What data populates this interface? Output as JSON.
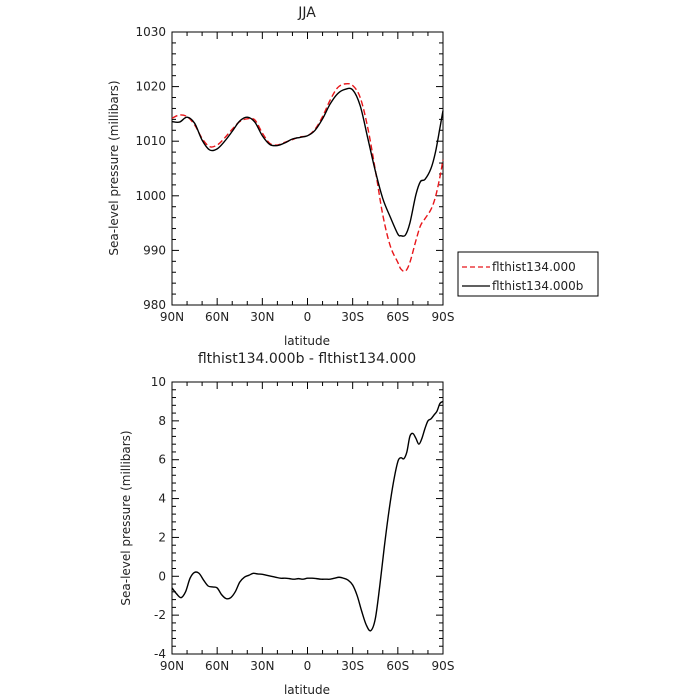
{
  "chart_data": [
    {
      "type": "line",
      "title": "JJA",
      "xlabel": "latitude",
      "ylabel": "Sea-level pressure (millibars)",
      "ylim": [
        980,
        1030
      ],
      "yticks": [
        "980",
        "990",
        "1000",
        "1010",
        "1020",
        "1030"
      ],
      "xlim": [
        90,
        -90
      ],
      "xticks": [
        "90N",
        "60N",
        "30N",
        "0",
        "30S",
        "60S",
        "90S"
      ],
      "legend_position": "right-middle",
      "series": [
        {
          "name": "flthist134.000",
          "color": "#e8161a",
          "dash": "dashed",
          "x": [
            90,
            85,
            80,
            75,
            70,
            65,
            60,
            55,
            50,
            45,
            40,
            35,
            30,
            25,
            20,
            15,
            10,
            5,
            0,
            -5,
            -10,
            -15,
            -20,
            -25,
            -30,
            -35,
            -40,
            -45,
            -50,
            -55,
            -60,
            -62,
            -65,
            -68,
            -72,
            -75,
            -78,
            -82,
            -85,
            -88,
            -90
          ],
          "values": [
            1014.2,
            1014.8,
            1014.5,
            1013.0,
            1010.5,
            1009.0,
            1009.3,
            1010.6,
            1012.2,
            1013.6,
            1014.1,
            1013.9,
            1011.5,
            1009.6,
            1009.3,
            1009.8,
            1010.3,
            1010.8,
            1011.0,
            1012.2,
            1014.5,
            1017.5,
            1019.8,
            1020.5,
            1020.2,
            1018.0,
            1012.5,
            1004.8,
            996.5,
            990.8,
            987.8,
            986.6,
            986.2,
            987.8,
            991.8,
            994.5,
            995.8,
            997.5,
            999.8,
            1003.5,
            1006.6
          ]
        },
        {
          "name": "flthist134.000b",
          "color": "#000000",
          "dash": "solid",
          "x": [
            90,
            85,
            80,
            75,
            70,
            65,
            60,
            55,
            50,
            45,
            40,
            35,
            30,
            25,
            20,
            15,
            10,
            5,
            0,
            -5,
            -10,
            -15,
            -20,
            -25,
            -30,
            -35,
            -40,
            -45,
            -50,
            -55,
            -60,
            -62,
            -65,
            -68,
            -72,
            -75,
            -78,
            -82,
            -85,
            -88,
            -90
          ],
          "values": [
            1013.6,
            1013.5,
            1014.4,
            1013.3,
            1010.2,
            1008.4,
            1008.6,
            1010.0,
            1011.8,
            1013.7,
            1014.4,
            1013.5,
            1011.0,
            1009.4,
            1009.2,
            1009.7,
            1010.4,
            1010.7,
            1011.0,
            1012.0,
            1014.1,
            1016.8,
            1018.7,
            1019.5,
            1019.4,
            1016.5,
            1010.6,
            1004.6,
            999.5,
            996.1,
            993.0,
            992.7,
            992.8,
            995.0,
            1000.2,
            1002.6,
            1003.0,
            1005.0,
            1008.0,
            1012.5,
            1015.6
          ]
        }
      ]
    },
    {
      "type": "line",
      "title": "flthist134.000b - flthist134.000",
      "xlabel": "latitude",
      "ylabel": "Sea-level pressure (millibars)",
      "ylim": [
        -4,
        10
      ],
      "yticks": [
        "-4",
        "-2",
        "0",
        "2",
        "4",
        "6",
        "8",
        "10"
      ],
      "xlim": [
        90,
        -90
      ],
      "xticks": [
        "90N",
        "60N",
        "30N",
        "0",
        "30S",
        "60S",
        "90S"
      ],
      "series": [
        {
          "color": "#000000",
          "dash": "solid",
          "x": [
            90,
            87,
            84,
            81,
            78,
            75,
            72,
            69,
            66,
            63,
            60,
            57,
            54,
            51,
            48,
            45,
            42,
            39,
            36,
            33,
            30,
            27,
            24,
            21,
            18,
            15,
            12,
            9,
            6,
            3,
            0,
            -3,
            -6,
            -9,
            -12,
            -15,
            -18,
            -21,
            -24,
            -27,
            -30,
            -33,
            -36,
            -39,
            -42,
            -45,
            -48,
            -51,
            -54,
            -57,
            -60,
            -62,
            -64,
            -66,
            -68,
            -70,
            -72,
            -74,
            -76,
            -78,
            -80,
            -82,
            -84,
            -86,
            -88,
            -90
          ],
          "values": [
            -0.6,
            -0.9,
            -1.1,
            -0.8,
            -0.1,
            0.2,
            0.15,
            -0.2,
            -0.5,
            -0.55,
            -0.6,
            -0.95,
            -1.15,
            -1.1,
            -0.8,
            -0.3,
            -0.05,
            0.05,
            0.15,
            0.12,
            0.1,
            0.05,
            0.0,
            -0.05,
            -0.1,
            -0.1,
            -0.12,
            -0.15,
            -0.12,
            -0.15,
            -0.1,
            -0.1,
            -0.12,
            -0.15,
            -0.15,
            -0.15,
            -0.1,
            -0.05,
            -0.1,
            -0.2,
            -0.45,
            -1.0,
            -1.8,
            -2.5,
            -2.8,
            -2.2,
            -0.5,
            1.5,
            3.3,
            4.8,
            5.9,
            6.1,
            6.05,
            6.4,
            7.2,
            7.35,
            7.1,
            6.8,
            7.1,
            7.6,
            8.0,
            8.1,
            8.3,
            8.5,
            8.9,
            9.0
          ]
        }
      ]
    }
  ]
}
